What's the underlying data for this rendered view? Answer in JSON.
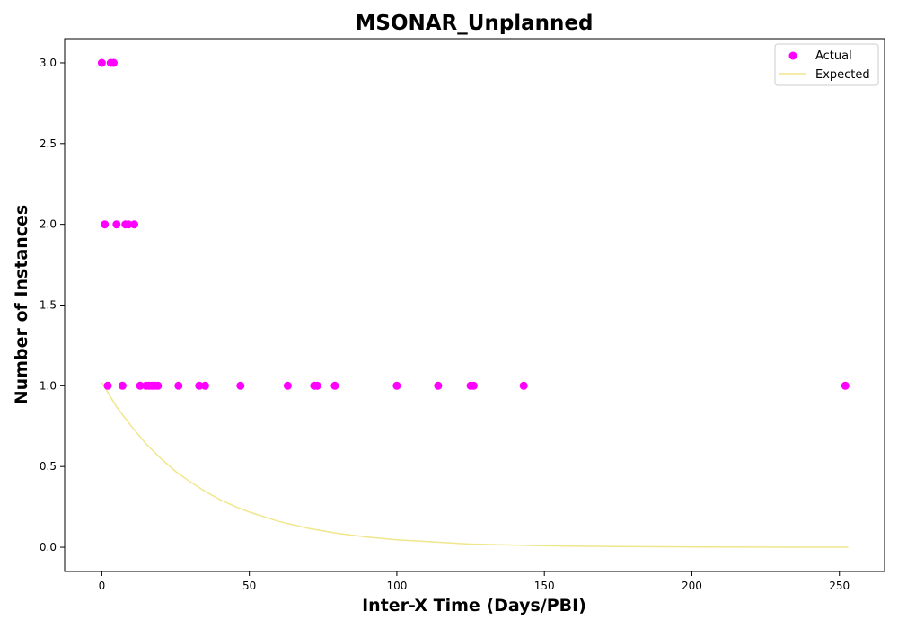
{
  "chart_data": {
    "type": "scatter",
    "title": "MSONAR_Unplanned",
    "xlabel": "Inter-X Time (Days/PBI)",
    "ylabel": "Number of Instances",
    "xlim": [
      -12.6,
      265.3
    ],
    "ylim": [
      -0.15,
      3.15
    ],
    "xticks": [
      0,
      50,
      100,
      150,
      200,
      250
    ],
    "xtick_labels": [
      "0",
      "50",
      "100",
      "150",
      "200",
      "250"
    ],
    "yticks": [
      0,
      0.5,
      1,
      1.5,
      2,
      2.5,
      3
    ],
    "ytick_labels": [
      "0.0",
      "0.5",
      "1.0",
      "1.5",
      "2.0",
      "2.5",
      "3.0"
    ],
    "grid": false,
    "legend_position": "top-right",
    "series": [
      {
        "name": "Actual",
        "kind": "scatter",
        "color": "#ff00ff",
        "x": [
          0,
          3,
          4,
          1,
          5,
          8,
          9,
          11,
          2,
          7,
          13,
          15,
          16,
          17,
          18,
          19,
          26,
          33,
          35,
          47,
          63,
          72,
          73,
          79,
          100,
          114,
          125,
          126,
          143,
          252
        ],
        "y": [
          3,
          3,
          3,
          2,
          2,
          2,
          2,
          2,
          1,
          1,
          1,
          1,
          1,
          1,
          1,
          1,
          1,
          1,
          1,
          1,
          1,
          1,
          1,
          1,
          1,
          1,
          1,
          1,
          1,
          1
        ]
      },
      {
        "name": "Expected",
        "kind": "line",
        "color": "#f0e68c",
        "x": [
          0,
          5,
          10,
          15,
          20,
          25,
          30,
          35,
          40,
          45,
          50,
          60,
          70,
          80,
          90,
          100,
          125,
          150,
          175,
          200,
          225,
          253
        ],
        "y": [
          1.02,
          0.87,
          0.75,
          0.64,
          0.55,
          0.47,
          0.405,
          0.346,
          0.296,
          0.254,
          0.218,
          0.16,
          0.117,
          0.086,
          0.063,
          0.046,
          0.02,
          0.009,
          0.004,
          0.002,
          0.001,
          0.0004
        ]
      }
    ]
  }
}
